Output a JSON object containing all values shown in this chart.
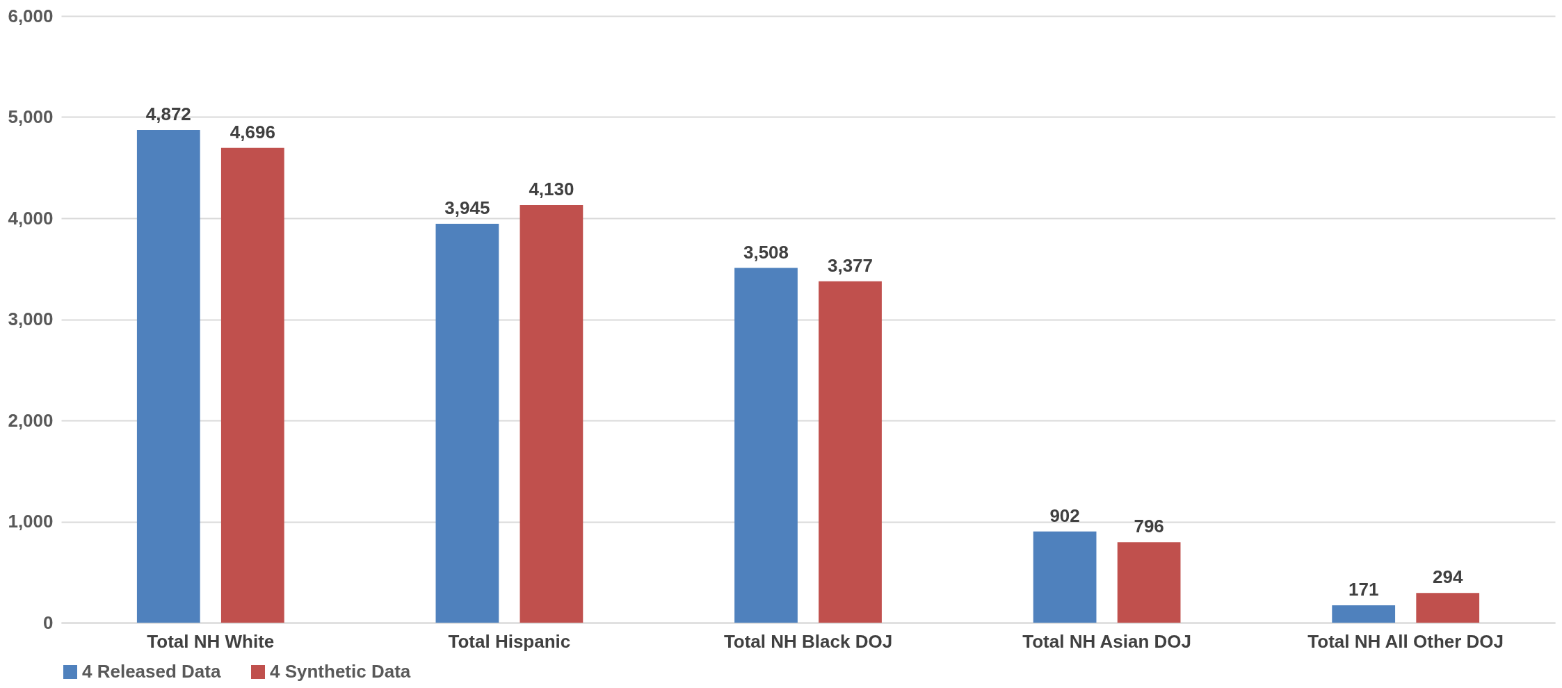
{
  "chart_data": {
    "type": "bar",
    "categories": [
      "Total NH White",
      "Total Hispanic",
      "Total NH Black DOJ",
      "Total NH Asian DOJ",
      "Total NH All Other DOJ"
    ],
    "series": [
      {
        "name": "4 Released Data",
        "color": "#4f81bd",
        "values": [
          4872,
          3945,
          3508,
          902,
          171
        ],
        "value_labels": [
          "4,872",
          "3,945",
          "3,508",
          "902",
          "171"
        ]
      },
      {
        "name": "4 Synthetic Data",
        "color": "#c0504d",
        "values": [
          4696,
          4130,
          3377,
          796,
          294
        ],
        "value_labels": [
          "4,696",
          "4,130",
          "3,377",
          "796",
          "294"
        ]
      }
    ],
    "ylim": [
      0,
      6000
    ],
    "yticks": [
      {
        "value": 0,
        "label": "0"
      },
      {
        "value": 1000,
        "label": "1,000"
      },
      {
        "value": 2000,
        "label": "2,000"
      },
      {
        "value": 3000,
        "label": "3,000"
      },
      {
        "value": 4000,
        "label": "4,000"
      },
      {
        "value": 5000,
        "label": "5,000"
      },
      {
        "value": 6000,
        "label": "6,000"
      }
    ],
    "grid": "y",
    "legend": "bottom"
  }
}
